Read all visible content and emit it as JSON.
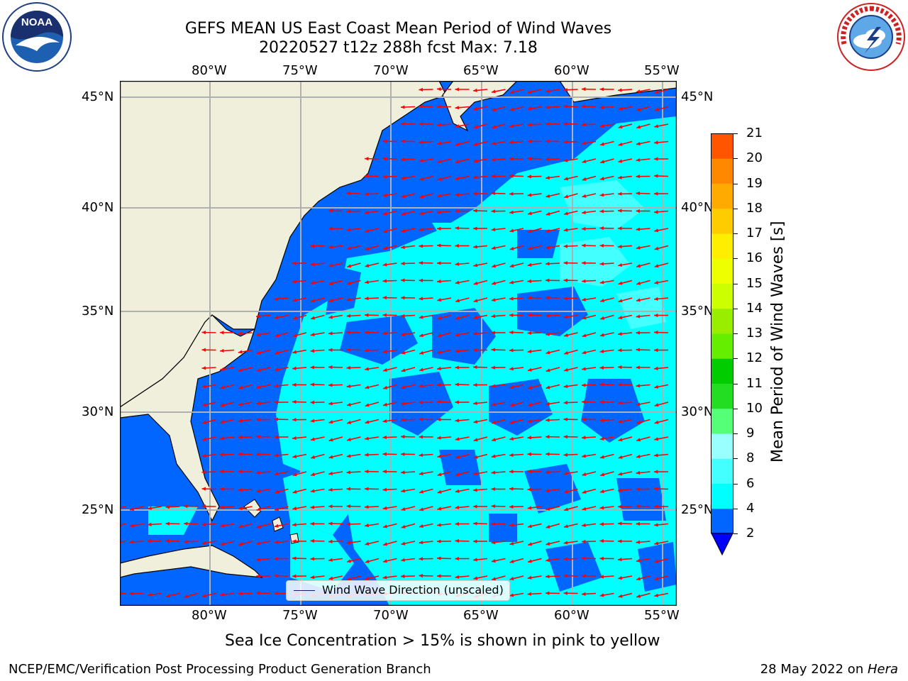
{
  "title": {
    "line1": "GEFS MEAN US East Coast Mean Period of Wind Waves",
    "line2": "20220527 t12z 288h fcst   Max: 7.18"
  },
  "logos": {
    "left": {
      "icon": "noaa-logo-icon",
      "text": "NOAA"
    },
    "right": {
      "icon": "nws-logo-icon",
      "text": "NATIONAL WEATHER SERVICE"
    }
  },
  "map": {
    "lon_labels": [
      "80°W",
      "75°W",
      "70°W",
      "65°W",
      "60°W",
      "55°W"
    ],
    "lat_labels": [
      "45°N",
      "40°N",
      "35°N",
      "30°N",
      "25°N"
    ],
    "land_color": "#efefdc",
    "arrow_color": "#ff0000",
    "legend_label": "Wind Wave Direction (unscaled)"
  },
  "colorbar": {
    "label": "Mean Period of Wind Waves [s]",
    "ticks": [
      "2",
      "4",
      "6",
      "8",
      "9",
      "10",
      "11",
      "12",
      "13",
      "14",
      "15",
      "16",
      "17",
      "18",
      "19",
      "20",
      "21"
    ],
    "colors": [
      "#0066ff",
      "#00ffff",
      "#44ffff",
      "#99ffff",
      "#55ff77",
      "#22dd22",
      "#00cc00",
      "#66ee00",
      "#99ee00",
      "#ccff00",
      "#eeff00",
      "#ffee00",
      "#ffcc00",
      "#ffaa00",
      "#ff8800",
      "#ff5500",
      "#ff2200",
      "#ff0000"
    ],
    "under_color": "#0000ff"
  },
  "note": "Sea Ice Concentration > 15% is shown in pink to yellow",
  "footer": {
    "left": "NCEP/EMC/Verification Post Processing Product Generation Branch",
    "right_date": "28 May 2022 on ",
    "right_machine": "Hera"
  }
}
